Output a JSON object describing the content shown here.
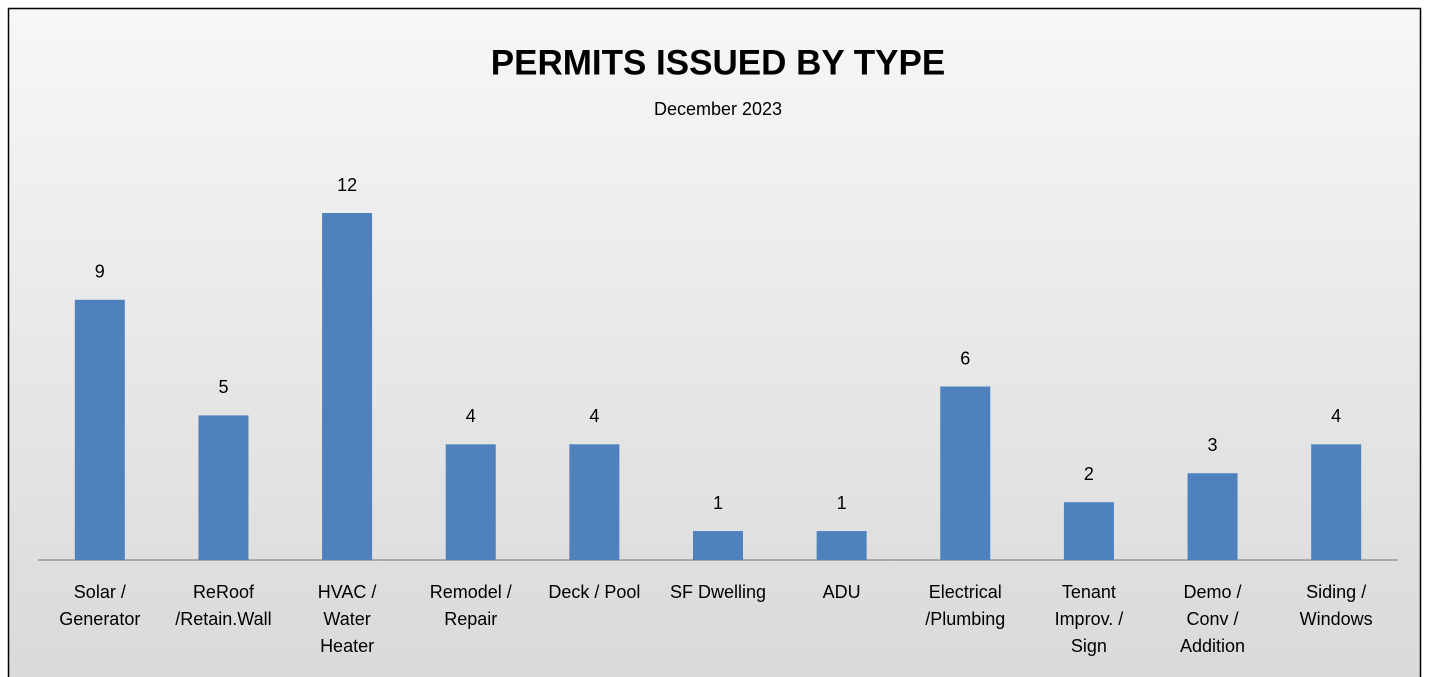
{
  "chart_data": {
    "type": "bar",
    "title": "PERMITS ISSUED BY TYPE",
    "subtitle": "December 2023",
    "categories": [
      [
        "Solar /",
        "Generator"
      ],
      [
        "ReRoof",
        "/Retain.Wall"
      ],
      [
        "HVAC /",
        "Water",
        "Heater"
      ],
      [
        "Remodel /",
        "Repair"
      ],
      [
        "Deck / Pool"
      ],
      [
        "SF Dwelling"
      ],
      [
        "ADU"
      ],
      [
        "Electrical",
        "/Plumbing"
      ],
      [
        "Tenant",
        "Improv. /",
        "Sign"
      ],
      [
        "Demo /",
        "Conv /",
        "Addition"
      ],
      [
        "Siding /",
        "Windows"
      ]
    ],
    "values": [
      9,
      5,
      12,
      4,
      4,
      1,
      1,
      6,
      2,
      3,
      4
    ],
    "color": "#4f81bd"
  }
}
